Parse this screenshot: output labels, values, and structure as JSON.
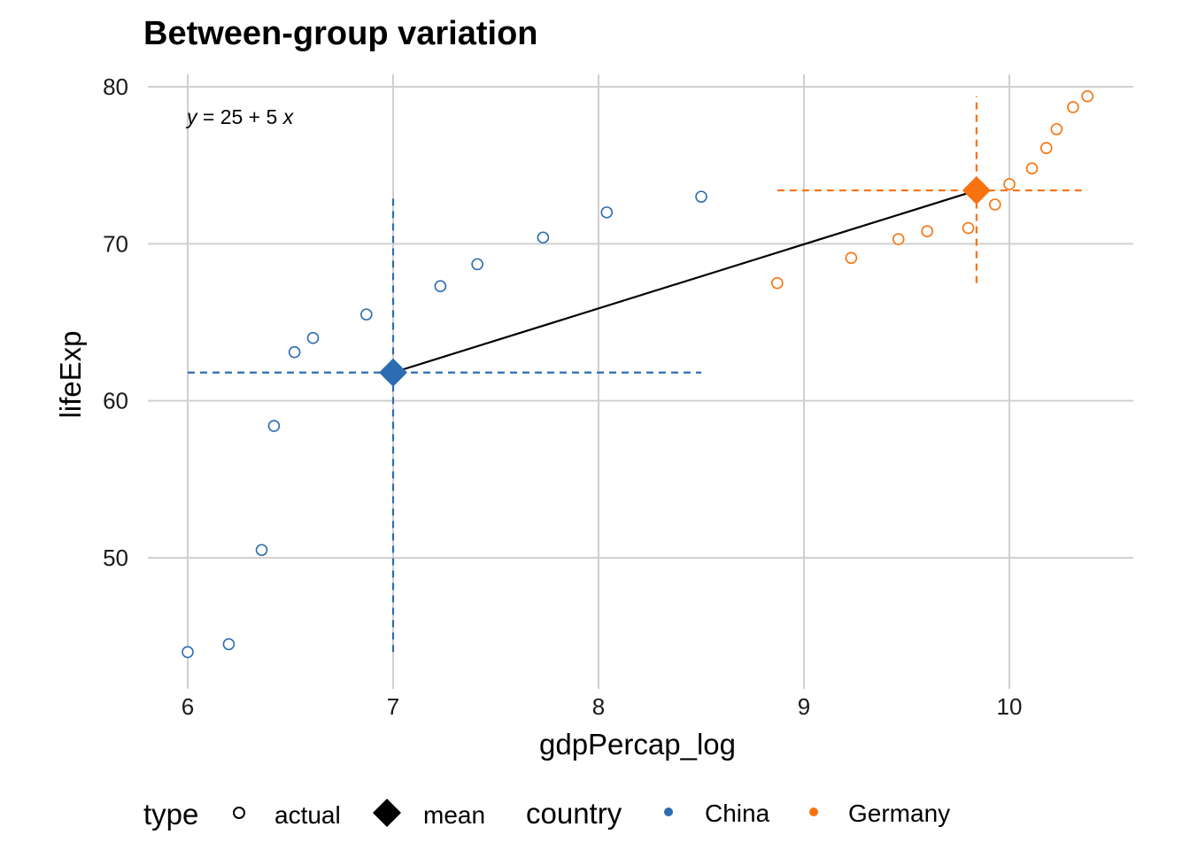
{
  "chart_data": {
    "type": "scatter",
    "title": "Between-group variation",
    "xlabel": "gdpPercap_log",
    "ylabel": "lifeExp",
    "xlim": [
      5.82,
      10.6
    ],
    "ylim": [
      42,
      81.5
    ],
    "xticks": [
      6,
      7,
      8,
      9,
      10
    ],
    "yticks": [
      50,
      60,
      70,
      80
    ],
    "grid": true,
    "legend_position": "bottom",
    "annotation": {
      "prefix": "y",
      "text": " = 25 + 5 ",
      "suffix": "x"
    },
    "colors": {
      "China": "#2c6db2",
      "Germany": "#f8720f",
      "mean_line": "#000000"
    },
    "series": [
      {
        "name": "China",
        "type": "actual",
        "x": [
          6.0,
          6.2,
          6.36,
          6.42,
          6.52,
          6.61,
          6.87,
          7.23,
          7.41,
          7.73,
          8.04,
          8.5
        ],
        "y": [
          44.0,
          44.5,
          50.5,
          58.4,
          63.1,
          64.0,
          65.5,
          67.3,
          68.7,
          70.4,
          72.0,
          73.0
        ]
      },
      {
        "name": "Germany",
        "type": "actual",
        "x": [
          8.87,
          9.23,
          9.46,
          9.6,
          9.8,
          9.93,
          10.0,
          10.11,
          10.18,
          10.23,
          10.31,
          10.38
        ],
        "y": [
          67.5,
          69.1,
          70.3,
          70.8,
          71.0,
          72.5,
          73.8,
          74.8,
          76.1,
          77.3,
          78.7,
          79.4
        ]
      }
    ],
    "means": [
      {
        "name": "China",
        "type": "mean",
        "x": 7.0,
        "y": 61.8,
        "x_range": [
          6.0,
          8.5
        ],
        "y_range": [
          44.0,
          73.0
        ]
      },
      {
        "name": "Germany",
        "type": "mean",
        "x": 9.84,
        "y": 73.4,
        "x_range": [
          8.87,
          10.38
        ],
        "y_range": [
          67.5,
          79.4
        ]
      }
    ],
    "legend": {
      "type_title": "type",
      "type_entries": [
        "actual",
        "mean"
      ],
      "country_title": "country",
      "country_entries": [
        "China",
        "Germany"
      ]
    }
  }
}
